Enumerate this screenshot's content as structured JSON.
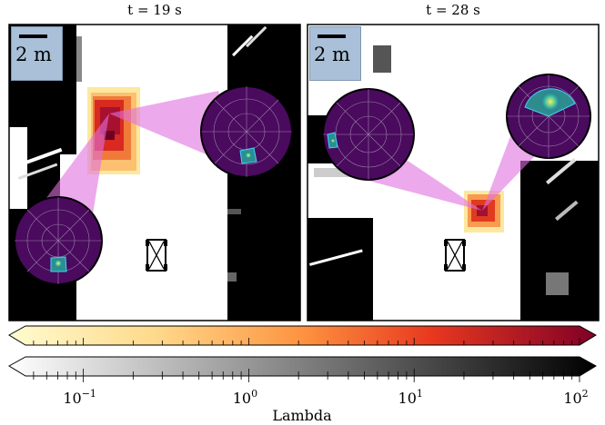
{
  "panels": [
    {
      "title": "t = 19 s",
      "scale_label": "2 m"
    },
    {
      "title": "t = 28 s",
      "scale_label": "2 m"
    }
  ],
  "colorbar": {
    "label": "Lambda",
    "tick_labels": [
      "10",
      "10",
      "10",
      "10"
    ],
    "tick_exponents": [
      "−1",
      "0",
      "1",
      "2"
    ],
    "log_min_exponent": -1.35,
    "log_max_exponent": 2,
    "top_colormap": "YlOrRd-like (light yellow to dark red)",
    "bottom_colormap": "Greys (white to black)"
  },
  "colors": {
    "heatmap_dark": "#a01030",
    "heatmap_light": "#f8e8a0",
    "polar_background": "#4a0a5e",
    "view_cone": "#e070e0",
    "scale_box": "#a9c0d8"
  }
}
